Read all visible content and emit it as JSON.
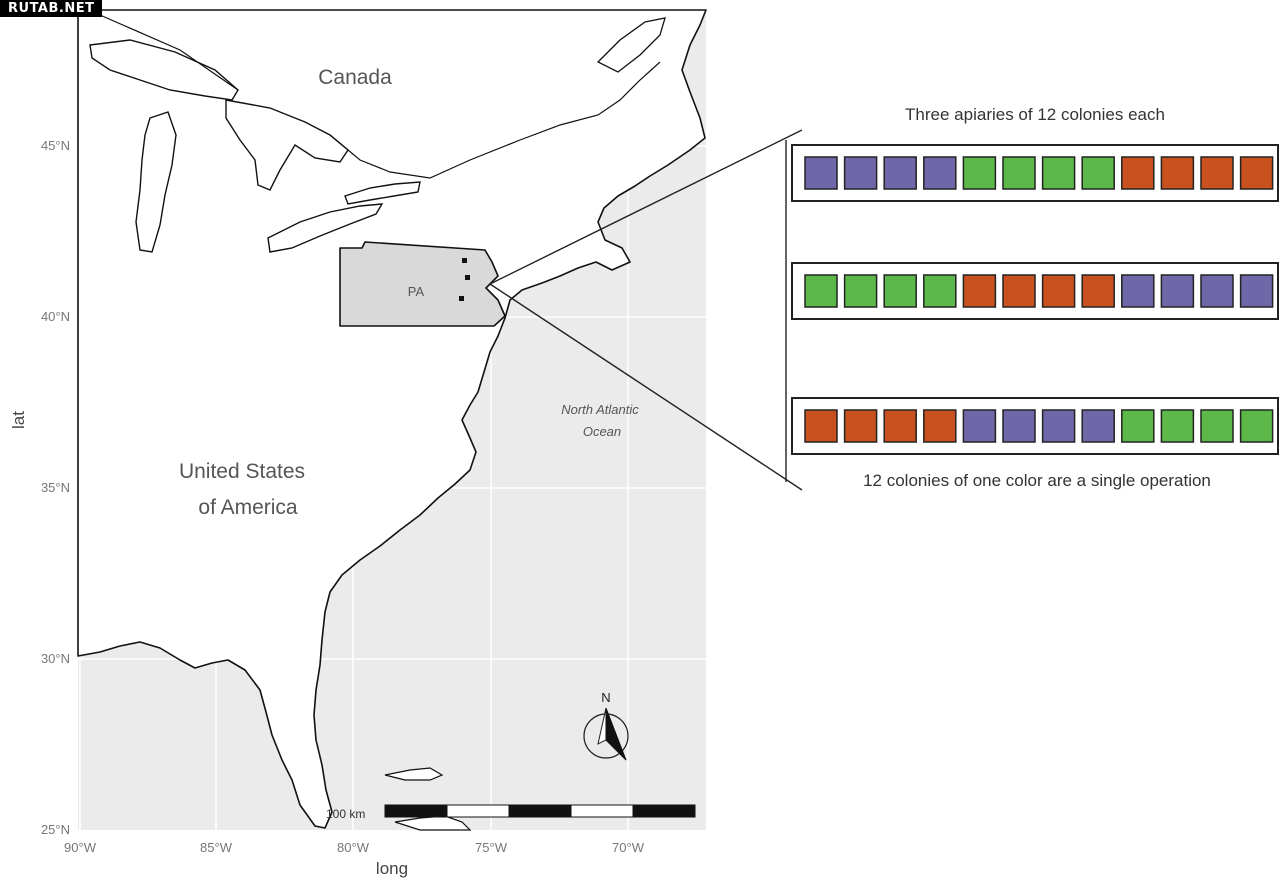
{
  "watermark": "RUTAB.NET",
  "map": {
    "region_labels": {
      "canada": "Canada",
      "usa_line1": "United States",
      "usa_line2": "of America",
      "ocean_line1": "North Atlantic",
      "ocean_line2": "Ocean",
      "state": "PA"
    },
    "axis": {
      "x_title": "long",
      "y_title": "lat",
      "x_ticks": [
        "90°W",
        "85°W",
        "80°W",
        "75°W",
        "70°W"
      ],
      "y_ticks": [
        "45°N",
        "40°N",
        "35°N",
        "30°N",
        "25°N"
      ]
    },
    "scale_bar_label": "100 km",
    "north_label": "N",
    "colors": {
      "ocean": "#ebebeb",
      "state_fill": "#d9d9d9",
      "land": "#ffffff",
      "coast": "#111111"
    }
  },
  "panel": {
    "title": "Three apiaries of 12 colonies each",
    "caption": "12 colonies of one color are a single operation",
    "colors": {
      "purple": "#6f68a8",
      "green": "#5cb849",
      "orange": "#c9511f"
    },
    "apiaries": [
      [
        "purple",
        "purple",
        "purple",
        "purple",
        "green",
        "green",
        "green",
        "green",
        "orange",
        "orange",
        "orange",
        "orange"
      ],
      [
        "green",
        "green",
        "green",
        "green",
        "orange",
        "orange",
        "orange",
        "orange",
        "purple",
        "purple",
        "purple",
        "purple"
      ],
      [
        "orange",
        "orange",
        "orange",
        "orange",
        "purple",
        "purple",
        "purple",
        "purple",
        "green",
        "green",
        "green",
        "green"
      ]
    ]
  }
}
